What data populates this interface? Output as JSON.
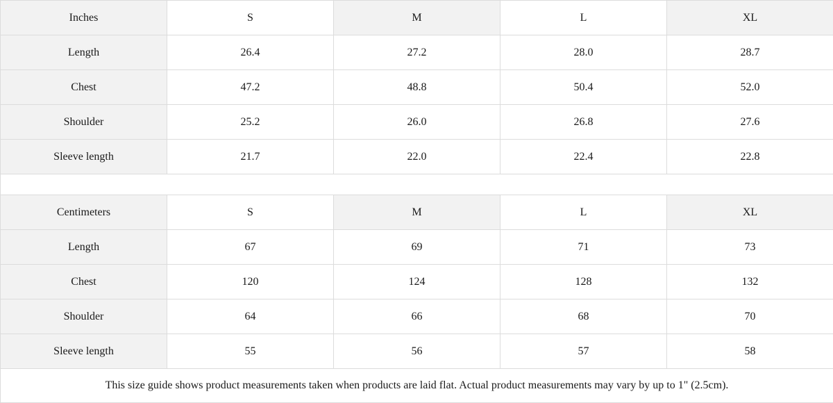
{
  "tables": [
    {
      "unit": "Inches",
      "sizes": [
        "S",
        "M",
        "L",
        "XL"
      ],
      "rows": [
        {
          "label": "Length",
          "values": [
            "26.4",
            "27.2",
            "28.0",
            "28.7"
          ]
        },
        {
          "label": "Chest",
          "values": [
            "47.2",
            "48.8",
            "50.4",
            "52.0"
          ]
        },
        {
          "label": "Shoulder",
          "values": [
            "25.2",
            "26.0",
            "26.8",
            "27.6"
          ]
        },
        {
          "label": "Sleeve length",
          "values": [
            "21.7",
            "22.0",
            "22.4",
            "22.8"
          ]
        }
      ]
    },
    {
      "unit": "Centimeters",
      "sizes": [
        "S",
        "M",
        "L",
        "XL"
      ],
      "rows": [
        {
          "label": "Length",
          "values": [
            "67",
            "69",
            "71",
            "73"
          ]
        },
        {
          "label": "Chest",
          "values": [
            "120",
            "124",
            "128",
            "132"
          ]
        },
        {
          "label": "Shoulder",
          "values": [
            "64",
            "66",
            "68",
            "70"
          ]
        },
        {
          "label": "Sleeve length",
          "values": [
            "55",
            "56",
            "57",
            "58"
          ]
        }
      ]
    }
  ],
  "note": "This size guide shows product measurements taken when products are laid flat.  Actual product measurements may vary by up to 1\" (2.5cm).",
  "colors": {
    "header_bg": "#f2f2f2",
    "border": "#dcdcdc"
  }
}
